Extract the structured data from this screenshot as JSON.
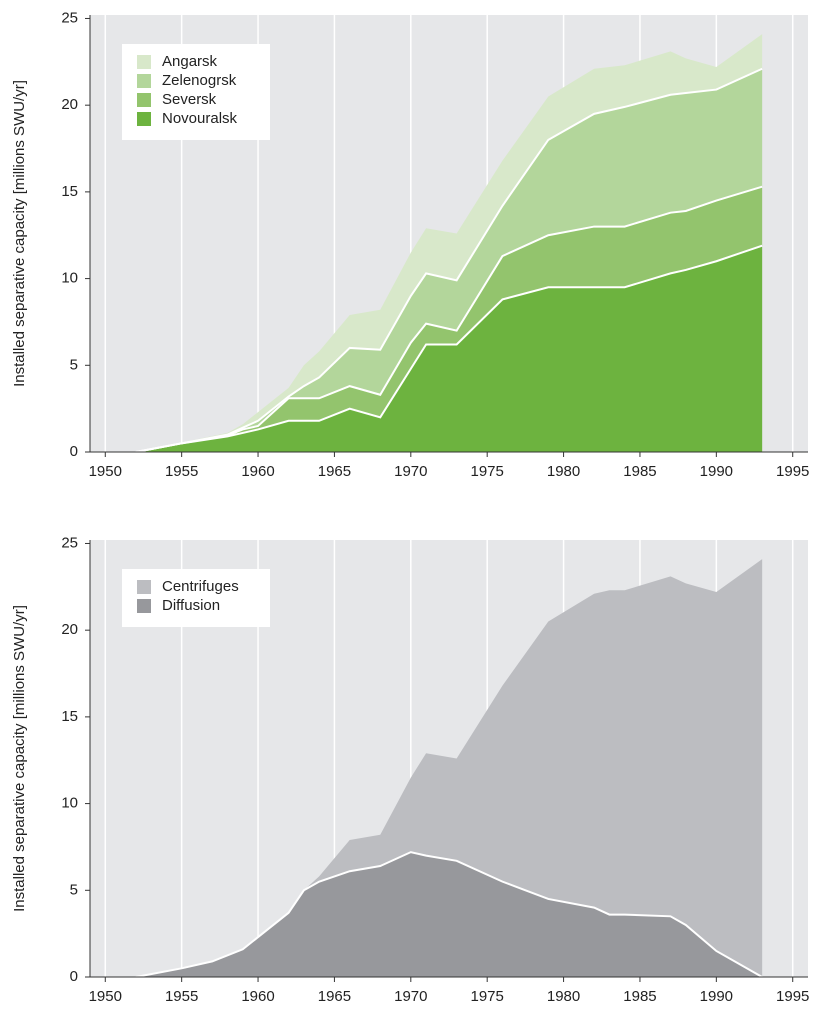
{
  "chart_data": [
    {
      "type": "stacked-area",
      "ylabel": "Installed separative capacity [millions SWU/yr]",
      "x": [
        1952,
        1955,
        1958,
        1959,
        1960,
        1962,
        1963,
        1964,
        1966,
        1968,
        1970,
        1971,
        1973,
        1976,
        1979,
        1982,
        1984,
        1987,
        1988,
        1990,
        1993
      ],
      "series": [
        {
          "name": "Novouralsk",
          "color": "#6db33f",
          "values": [
            0,
            0.5,
            0.9,
            1.1,
            1.3,
            1.8,
            1.8,
            1.8,
            2.5,
            2.0,
            4.8,
            6.2,
            6.2,
            8.8,
            9.5,
            9.5,
            9.5,
            10.3,
            10.5,
            11.0,
            11.9
          ]
        },
        {
          "name": "Seversk",
          "color": "#93c46d",
          "values": [
            0,
            0,
            0.05,
            0.2,
            0.2,
            1.3,
            1.3,
            1.3,
            1.3,
            1.3,
            1.5,
            1.2,
            0.8,
            2.5,
            3.0,
            3.5,
            3.5,
            3.5,
            3.4,
            3.5,
            3.4
          ]
        },
        {
          "name": "Zelenogrsk",
          "color": "#b3d69b",
          "values": [
            0,
            0,
            0.05,
            0.1,
            0.3,
            0.1,
            0.7,
            1.2,
            2.2,
            2.6,
            2.7,
            2.9,
            2.9,
            2.9,
            5.5,
            6.5,
            6.9,
            6.8,
            6.8,
            6.4,
            6.8
          ]
        },
        {
          "name": "Angarsk",
          "color": "#d8e8ca",
          "values": [
            0,
            0.05,
            0.1,
            0.2,
            0.5,
            0.5,
            1.2,
            1.5,
            1.9,
            2.3,
            2.5,
            2.6,
            2.7,
            2.6,
            2.5,
            2.6,
            2.4,
            2.5,
            2.0,
            1.3,
            2.0
          ]
        }
      ],
      "xlim": [
        1949,
        1996
      ],
      "xticks": [
        1950,
        1955,
        1960,
        1965,
        1970,
        1975,
        1980,
        1985,
        1990,
        1995
      ],
      "ylim": [
        0,
        25.2
      ],
      "yticks": [
        0,
        5,
        10,
        15,
        20,
        25
      ],
      "grid": true,
      "legend": "upper left"
    },
    {
      "type": "stacked-area",
      "ylabel": "Installed separative capacity [millions SWU/yr]",
      "x": [
        1952,
        1955,
        1957,
        1959,
        1962,
        1963,
        1964,
        1966,
        1968,
        1970,
        1971,
        1973,
        1976,
        1979,
        1982,
        1983,
        1984,
        1987,
        1988,
        1990,
        1993
      ],
      "series": [
        {
          "name": "Diffusion",
          "color": "#97989c",
          "values": [
            0,
            0.5,
            0.9,
            1.6,
            3.7,
            5.0,
            5.5,
            6.1,
            6.4,
            7.2,
            7.0,
            6.7,
            5.5,
            4.5,
            4.0,
            3.6,
            3.6,
            3.5,
            3.0,
            1.5,
            0
          ]
        },
        {
          "name": "Centrifuges",
          "color": "#bcbdc1",
          "values": [
            0,
            0.05,
            0,
            0,
            0,
            0,
            0.3,
            1.8,
            1.8,
            4.3,
            5.9,
            5.9,
            11.3,
            16.0,
            18.1,
            18.7,
            18.7,
            19.6,
            19.7,
            20.7,
            24.1
          ]
        }
      ],
      "xlim": [
        1949,
        1996
      ],
      "xticks": [
        1950,
        1955,
        1960,
        1965,
        1970,
        1975,
        1980,
        1985,
        1990,
        1995
      ],
      "ylim": [
        0,
        25.2
      ],
      "yticks": [
        0,
        5,
        10,
        15,
        20,
        25
      ],
      "grid": true,
      "legend": "upper left"
    }
  ]
}
